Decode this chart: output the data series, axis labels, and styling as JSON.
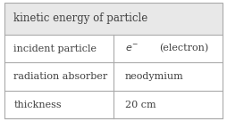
{
  "title": "kinetic energy of particle",
  "rows": [
    {
      "label": "incident particle",
      "value_type": "electron"
    },
    {
      "label": "radiation absorber",
      "value_plain": "neodymium"
    },
    {
      "label": "thickness",
      "value_plain": "20 cm"
    }
  ],
  "col_split": 0.5,
  "background_color": "#ffffff",
  "border_color": "#aaaaaa",
  "title_bg": "#e8e8e8",
  "text_color": "#404040",
  "title_fontsize": 8.5,
  "body_fontsize": 8.0,
  "figwidth": 2.54,
  "figheight": 1.36,
  "dpi": 100
}
